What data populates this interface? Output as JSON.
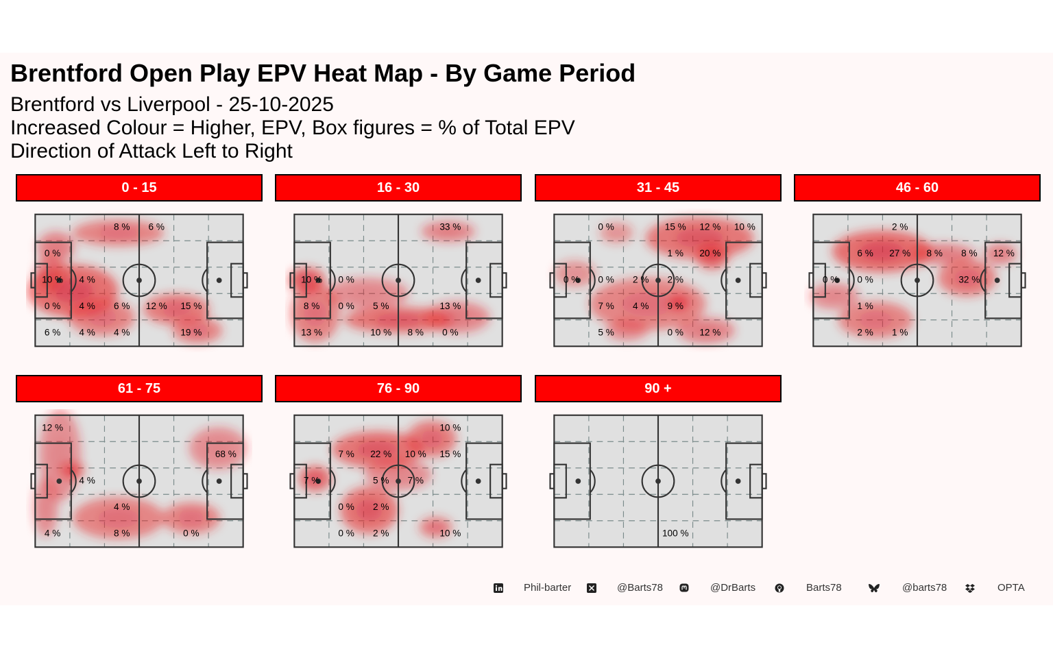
{
  "title": "Brentford Open Play EPV Heat Map - By Game Period",
  "subtitle_lines": [
    "Brentford vs Liverpool - 25-10-2025",
    "Increased Colour = Higher, EPV, Box figures = % of Total EPV",
    "Direction of Attack Left to Right"
  ],
  "colors": {
    "strip": "#ff0000",
    "pitch": "#e0e0e0",
    "heat": "#e8282a",
    "background": "#fff8f8"
  },
  "chart_data": {
    "type": "heatmap",
    "grid": {
      "cols": 6,
      "rows": 5
    },
    "panels": [
      {
        "label": "0 - 15",
        "cells": [
          {
            "col": 2,
            "row": 0,
            "text": "8 %"
          },
          {
            "col": 3,
            "row": 0,
            "text": "6 %"
          },
          {
            "col": 0,
            "row": 1,
            "text": "0 %"
          },
          {
            "col": 0,
            "row": 2,
            "text": "10 %"
          },
          {
            "col": 1,
            "row": 2,
            "text": "4 %"
          },
          {
            "col": 0,
            "row": 3,
            "text": "0 %"
          },
          {
            "col": 1,
            "row": 3,
            "text": "4 %"
          },
          {
            "col": 2,
            "row": 3,
            "text": "6 %"
          },
          {
            "col": 3,
            "row": 3,
            "text": "12 %"
          },
          {
            "col": 4,
            "row": 3,
            "text": "15 %"
          },
          {
            "col": 0,
            "row": 4,
            "text": "6 %"
          },
          {
            "col": 1,
            "row": 4,
            "text": "4 %"
          },
          {
            "col": 2,
            "row": 4,
            "text": "4 %"
          },
          {
            "col": 4,
            "row": 4,
            "text": "19 %"
          }
        ],
        "heat": [
          {
            "x": 0.4,
            "y": 0.14,
            "rx": 0.22,
            "ry": 0.1,
            "w": 0.7
          },
          {
            "x": 0.1,
            "y": 0.25,
            "rx": 0.09,
            "ry": 0.12,
            "w": 0.6
          },
          {
            "x": 0.18,
            "y": 0.58,
            "rx": 0.22,
            "ry": 0.2,
            "w": 1.0
          },
          {
            "x": 0.32,
            "y": 0.78,
            "rx": 0.16,
            "ry": 0.14,
            "w": 0.7
          },
          {
            "x": 0.68,
            "y": 0.72,
            "rx": 0.16,
            "ry": 0.12,
            "w": 0.8
          },
          {
            "x": 0.78,
            "y": 0.88,
            "rx": 0.12,
            "ry": 0.1,
            "w": 0.7
          },
          {
            "x": 0.07,
            "y": 0.45,
            "rx": 0.07,
            "ry": 0.14,
            "w": 0.6
          }
        ]
      },
      {
        "label": "16 - 30",
        "cells": [
          {
            "col": 4,
            "row": 0,
            "text": "33 %"
          },
          {
            "col": 0,
            "row": 2,
            "text": "10 %"
          },
          {
            "col": 1,
            "row": 2,
            "text": "0 %"
          },
          {
            "col": 0,
            "row": 3,
            "text": "8 %"
          },
          {
            "col": 1,
            "row": 3,
            "text": "0 %"
          },
          {
            "col": 2,
            "row": 3,
            "text": "5 %"
          },
          {
            "col": 4,
            "row": 3,
            "text": "13 %"
          },
          {
            "col": 0,
            "row": 4,
            "text": "13 %"
          },
          {
            "col": 2,
            "row": 4,
            "text": "10 %"
          },
          {
            "col": 3,
            "row": 4,
            "text": "8 %"
          },
          {
            "col": 4,
            "row": 4,
            "text": "0 %"
          }
        ],
        "heat": [
          {
            "x": 0.74,
            "y": 0.13,
            "rx": 0.13,
            "ry": 0.08,
            "w": 0.6
          },
          {
            "x": 0.06,
            "y": 0.5,
            "rx": 0.09,
            "ry": 0.1,
            "w": 1.0
          },
          {
            "x": 0.1,
            "y": 0.75,
            "rx": 0.12,
            "ry": 0.22,
            "w": 0.7
          },
          {
            "x": 0.35,
            "y": 0.6,
            "rx": 0.2,
            "ry": 0.12,
            "w": 0.5
          },
          {
            "x": 0.5,
            "y": 0.8,
            "rx": 0.26,
            "ry": 0.1,
            "w": 0.9
          },
          {
            "x": 0.78,
            "y": 0.78,
            "rx": 0.16,
            "ry": 0.12,
            "w": 0.6
          }
        ]
      },
      {
        "label": "31 - 45",
        "cells": [
          {
            "col": 1,
            "row": 0,
            "text": "0 %"
          },
          {
            "col": 3,
            "row": 0,
            "text": "15 %"
          },
          {
            "col": 4,
            "row": 0,
            "text": "12 %"
          },
          {
            "col": 5,
            "row": 0,
            "text": "10 %"
          },
          {
            "col": 3,
            "row": 1,
            "text": "1 %"
          },
          {
            "col": 4,
            "row": 1,
            "text": "20 %"
          },
          {
            "col": 0,
            "row": 2,
            "text": "0 %"
          },
          {
            "col": 1,
            "row": 2,
            "text": "0 %"
          },
          {
            "col": 2,
            "row": 2,
            "text": "2 %"
          },
          {
            "col": 3,
            "row": 2,
            "text": "2 %"
          },
          {
            "col": 1,
            "row": 3,
            "text": "7 %"
          },
          {
            "col": 2,
            "row": 3,
            "text": "4 %"
          },
          {
            "col": 3,
            "row": 3,
            "text": "9 %"
          },
          {
            "col": 1,
            "row": 4,
            "text": "5 %"
          },
          {
            "col": 3,
            "row": 4,
            "text": "0 %"
          },
          {
            "col": 4,
            "row": 4,
            "text": "12 %"
          }
        ],
        "heat": [
          {
            "x": 0.7,
            "y": 0.18,
            "rx": 0.26,
            "ry": 0.16,
            "w": 0.9
          },
          {
            "x": 0.76,
            "y": 0.32,
            "rx": 0.08,
            "ry": 0.1,
            "w": 0.9
          },
          {
            "x": 0.3,
            "y": 0.14,
            "rx": 0.08,
            "ry": 0.08,
            "w": 0.4
          },
          {
            "x": 0.1,
            "y": 0.45,
            "rx": 0.1,
            "ry": 0.1,
            "w": 0.4
          },
          {
            "x": 0.45,
            "y": 0.68,
            "rx": 0.28,
            "ry": 0.2,
            "w": 0.7
          },
          {
            "x": 0.6,
            "y": 0.67,
            "rx": 0.05,
            "ry": 0.06,
            "w": 1.0
          },
          {
            "x": 0.73,
            "y": 0.88,
            "rx": 0.14,
            "ry": 0.1,
            "w": 0.6
          },
          {
            "x": 0.35,
            "y": 0.88,
            "rx": 0.1,
            "ry": 0.08,
            "w": 0.5
          }
        ]
      },
      {
        "label": "46 - 60",
        "cells": [
          {
            "col": 2,
            "row": 0,
            "text": "2 %"
          },
          {
            "col": 1,
            "row": 1,
            "text": "6 %"
          },
          {
            "col": 2,
            "row": 1,
            "text": "27 %"
          },
          {
            "col": 3,
            "row": 1,
            "text": "8 %"
          },
          {
            "col": 4,
            "row": 1,
            "text": "8 %"
          },
          {
            "col": 5,
            "row": 1,
            "text": "12 %"
          },
          {
            "col": 0,
            "row": 2,
            "text": "0 %"
          },
          {
            "col": 1,
            "row": 2,
            "text": "0 %"
          },
          {
            "col": 4,
            "row": 2,
            "text": "32 %"
          },
          {
            "col": 1,
            "row": 3,
            "text": "1 %"
          },
          {
            "col": 1,
            "row": 4,
            "text": "2 %"
          },
          {
            "col": 2,
            "row": 4,
            "text": "1 %"
          }
        ],
        "heat": [
          {
            "x": 0.33,
            "y": 0.28,
            "rx": 0.24,
            "ry": 0.16,
            "w": 1.0
          },
          {
            "x": 0.62,
            "y": 0.3,
            "rx": 0.16,
            "ry": 0.08,
            "w": 0.6
          },
          {
            "x": 0.74,
            "y": 0.48,
            "rx": 0.14,
            "ry": 0.14,
            "w": 0.8
          },
          {
            "x": 0.9,
            "y": 0.3,
            "rx": 0.08,
            "ry": 0.08,
            "w": 0.6
          },
          {
            "x": 0.1,
            "y": 0.62,
            "rx": 0.12,
            "ry": 0.1,
            "w": 0.5
          },
          {
            "x": 0.3,
            "y": 0.8,
            "rx": 0.18,
            "ry": 0.14,
            "w": 0.7
          }
        ]
      },
      {
        "label": "61 - 75",
        "cells": [
          {
            "col": 0,
            "row": 0,
            "text": "12 %"
          },
          {
            "col": 5,
            "row": 1,
            "text": "68 %"
          },
          {
            "col": 1,
            "row": 2,
            "text": "4 %"
          },
          {
            "col": 2,
            "row": 3,
            "text": "4 %"
          },
          {
            "col": 0,
            "row": 4,
            "text": "4 %"
          },
          {
            "col": 2,
            "row": 4,
            "text": "8 %"
          },
          {
            "col": 4,
            "row": 4,
            "text": "0 %"
          }
        ],
        "heat": [
          {
            "x": 0.88,
            "y": 0.25,
            "rx": 0.14,
            "ry": 0.16,
            "w": 0.5
          },
          {
            "x": 0.12,
            "y": 0.3,
            "rx": 0.1,
            "ry": 0.35,
            "w": 0.5
          },
          {
            "x": 0.18,
            "y": 0.42,
            "rx": 0.06,
            "ry": 0.06,
            "w": 0.8
          },
          {
            "x": 0.4,
            "y": 0.78,
            "rx": 0.22,
            "ry": 0.16,
            "w": 0.7
          },
          {
            "x": 0.75,
            "y": 0.78,
            "rx": 0.14,
            "ry": 0.12,
            "w": 0.7
          },
          {
            "x": 0.05,
            "y": 0.7,
            "rx": 0.06,
            "ry": 0.22,
            "w": 0.5
          }
        ]
      },
      {
        "label": "76 - 90",
        "cells": [
          {
            "col": 4,
            "row": 0,
            "text": "10 %"
          },
          {
            "col": 1,
            "row": 1,
            "text": "7 %"
          },
          {
            "col": 2,
            "row": 1,
            "text": "22 %"
          },
          {
            "col": 3,
            "row": 1,
            "text": "10 %"
          },
          {
            "col": 4,
            "row": 1,
            "text": "15 %"
          },
          {
            "col": 0,
            "row": 2,
            "text": "7 %"
          },
          {
            "col": 2,
            "row": 2,
            "text": "5 %"
          },
          {
            "col": 3,
            "row": 2,
            "text": "7 %"
          },
          {
            "col": 1,
            "row": 3,
            "text": "0 %"
          },
          {
            "col": 2,
            "row": 3,
            "text": "2 %"
          },
          {
            "col": 1,
            "row": 4,
            "text": "0 %"
          },
          {
            "col": 2,
            "row": 4,
            "text": "2 %"
          },
          {
            "col": 4,
            "row": 4,
            "text": "10 %"
          }
        ],
        "heat": [
          {
            "x": 0.4,
            "y": 0.26,
            "rx": 0.22,
            "ry": 0.14,
            "w": 0.9
          },
          {
            "x": 0.66,
            "y": 0.18,
            "rx": 0.12,
            "ry": 0.14,
            "w": 0.8
          },
          {
            "x": 0.1,
            "y": 0.48,
            "rx": 0.08,
            "ry": 0.1,
            "w": 0.9
          },
          {
            "x": 0.36,
            "y": 0.72,
            "rx": 0.14,
            "ry": 0.18,
            "w": 0.9
          },
          {
            "x": 0.68,
            "y": 0.85,
            "rx": 0.08,
            "ry": 0.08,
            "w": 0.7
          },
          {
            "x": 0.5,
            "y": 0.45,
            "rx": 0.16,
            "ry": 0.12,
            "w": 0.5
          }
        ]
      },
      {
        "label": "90 +",
        "cells": [
          {
            "col": 3,
            "row": 4,
            "text": "100 %"
          }
        ],
        "heat": []
      }
    ]
  },
  "footer": {
    "items": [
      {
        "icon": "linkedin-icon",
        "text": "Phil-barter"
      },
      {
        "icon": "x-icon",
        "text": "@Barts78"
      },
      {
        "icon": "mastodon-icon",
        "text": "@DrBarts"
      },
      {
        "icon": "github-icon",
        "text": "Barts78"
      },
      {
        "icon": "bluesky-icon",
        "text": "@barts78"
      },
      {
        "icon": "dropbox-icon",
        "text": "OPTA"
      }
    ]
  }
}
